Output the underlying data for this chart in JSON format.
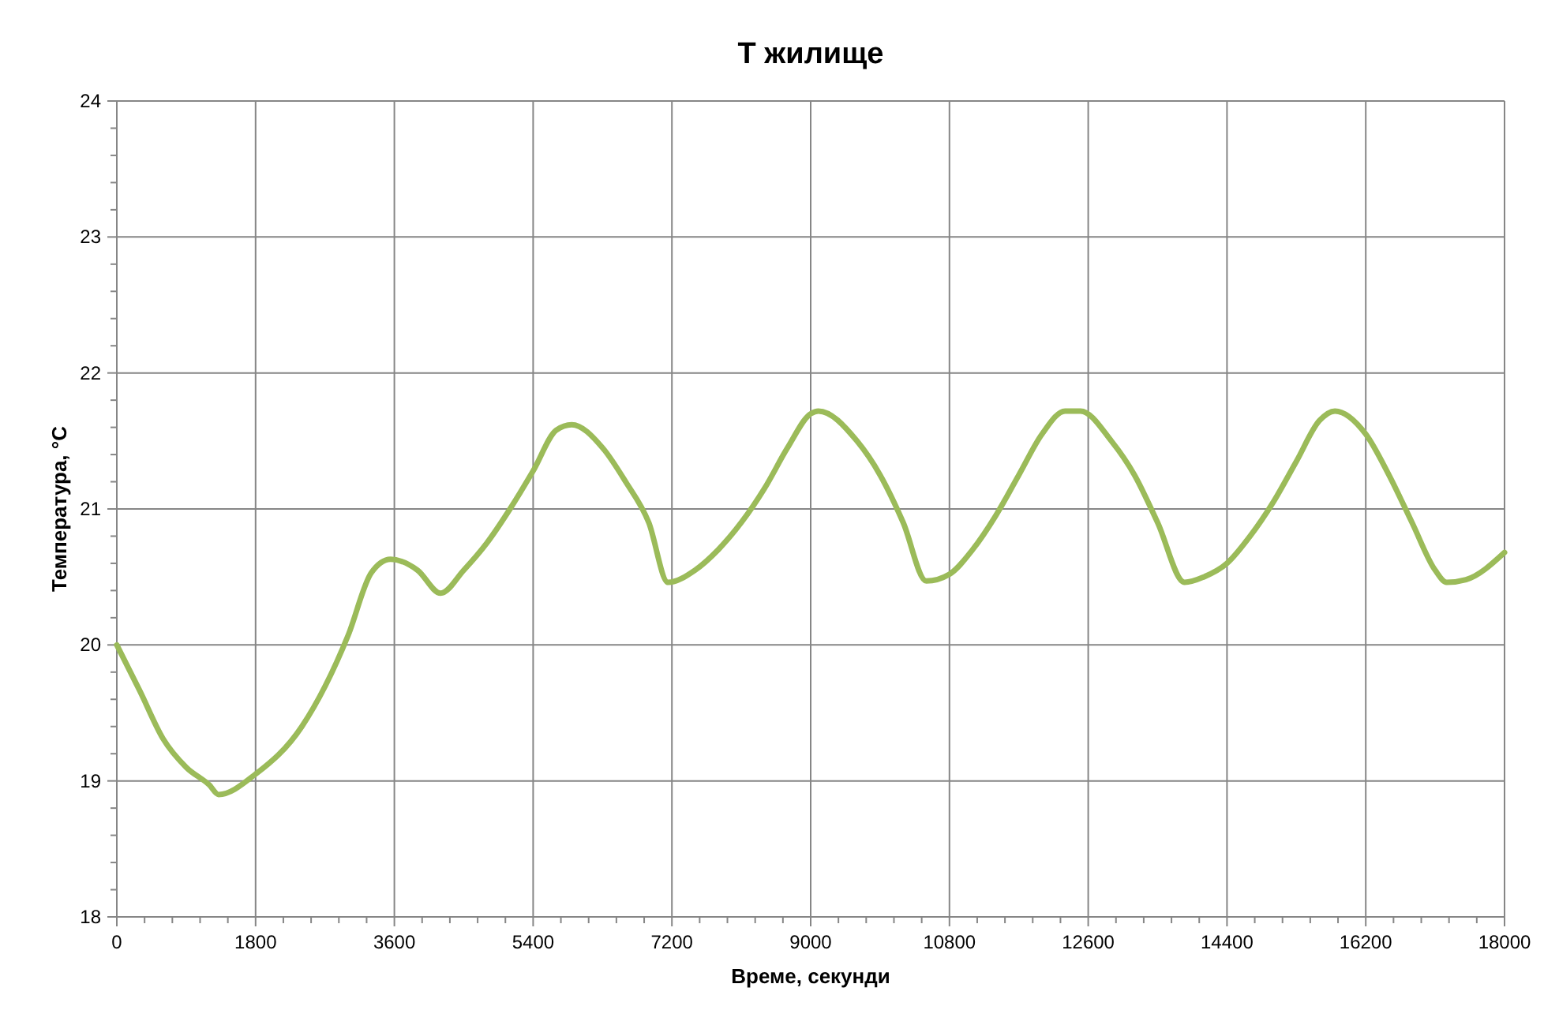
{
  "chart_data": {
    "type": "line",
    "title": "Т жилище",
    "xlabel": "Време, секунди",
    "ylabel": "Температура, °С",
    "xlim": [
      0,
      18000
    ],
    "xticks": [
      0,
      {
        "value": 360,
        "label": null
      },
      {
        "value": 720,
        "label": null
      },
      {
        "value": 1080,
        "label": null
      },
      {
        "value": 1440,
        "label": null
      },
      1800,
      {
        "value": 2160,
        "label": null
      },
      {
        "value": 2520,
        "label": null
      },
      {
        "value": 2880,
        "label": null
      },
      {
        "value": 3240,
        "label": null
      },
      3600,
      {
        "value": 3960,
        "label": null
      },
      {
        "value": 4320,
        "label": null
      },
      {
        "value": 4680,
        "label": null
      },
      {
        "value": 5040,
        "label": null
      },
      5400,
      {
        "value": 5760,
        "label": null
      },
      {
        "value": 6120,
        "label": null
      },
      {
        "value": 6480,
        "label": null
      },
      {
        "value": 6840,
        "label": null
      },
      7200,
      {
        "value": 7560,
        "label": null
      },
      {
        "value": 7920,
        "label": null
      },
      {
        "value": 8280,
        "label": null
      },
      {
        "value": 8640,
        "label": null
      },
      9000,
      {
        "value": 9360,
        "label": null
      },
      {
        "value": 9720,
        "label": null
      },
      {
        "value": 10080,
        "label": null
      },
      {
        "value": 10440,
        "label": null
      },
      10800,
      {
        "value": 11160,
        "label": null
      },
      {
        "value": 11520,
        "label": null
      },
      {
        "value": 11880,
        "label": null
      },
      {
        "value": 12240,
        "label": null
      },
      12600,
      {
        "value": 12960,
        "label": null
      },
      {
        "value": 13320,
        "label": null
      },
      {
        "value": 13680,
        "label": null
      },
      {
        "value": 14040,
        "label": null
      },
      14400,
      {
        "value": 14760,
        "label": null
      },
      {
        "value": 15120,
        "label": null
      },
      {
        "value": 15480,
        "label": null
      },
      {
        "value": 15840,
        "label": null
      },
      16200,
      {
        "value": 16560,
        "label": null
      },
      {
        "value": 16920,
        "label": null
      },
      {
        "value": 17280,
        "label": null
      },
      {
        "value": 17640,
        "label": null
      },
      18000
    ],
    "ylim": [
      18,
      24
    ],
    "yticks": [
      18,
      {
        "value": 18.2,
        "label": null
      },
      {
        "value": 18.4,
        "label": null
      },
      {
        "value": 18.6,
        "label": null
      },
      {
        "value": 18.8,
        "label": null
      },
      19,
      {
        "value": 19.2,
        "label": null
      },
      {
        "value": 19.4,
        "label": null
      },
      {
        "value": 19.6,
        "label": null
      },
      {
        "value": 19.8,
        "label": null
      },
      20,
      {
        "value": 20.2,
        "label": null
      },
      {
        "value": 20.4,
        "label": null
      },
      {
        "value": 20.6,
        "label": null
      },
      {
        "value": 20.8,
        "label": null
      },
      21,
      {
        "value": 21.2,
        "label": null
      },
      {
        "value": 21.4,
        "label": null
      },
      {
        "value": 21.6,
        "label": null
      },
      {
        "value": 21.8,
        "label": null
      },
      22,
      {
        "value": 22.2,
        "label": null
      },
      {
        "value": 22.4,
        "label": null
      },
      {
        "value": 22.6,
        "label": null
      },
      {
        "value": 22.8,
        "label": null
      },
      23,
      {
        "value": 23.2,
        "label": null
      },
      {
        "value": 23.4,
        "label": null
      },
      {
        "value": 23.6,
        "label": null
      },
      {
        "value": 23.8,
        "label": null
      },
      24
    ],
    "grid": true,
    "marker": "none",
    "line_style": "solid",
    "series": [
      {
        "color": "#9bbb59",
        "x": [
          0,
          300,
          600,
          900,
          1200,
          1320,
          1800,
          2400,
          3000,
          3300,
          3550,
          3900,
          4200,
          4500,
          4800,
          5100,
          5400,
          5700,
          5900,
          6300,
          6600,
          6900,
          7150,
          7500,
          7800,
          8100,
          8400,
          8700,
          9000,
          9100,
          9600,
          9900,
          10200,
          10500,
          10800,
          11100,
          11400,
          11700,
          12000,
          12300,
          12500,
          12900,
          13200,
          13500,
          13850,
          14100,
          14400,
          14700,
          15000,
          15300,
          15600,
          15800,
          16200,
          16500,
          16800,
          17100,
          17250,
          17500,
          18000
        ],
        "values": [
          20.0,
          19.66,
          19.31,
          19.1,
          18.97,
          18.9,
          19.05,
          19.4,
          20.07,
          20.53,
          20.63,
          20.55,
          20.38,
          20.55,
          20.75,
          21.0,
          21.28,
          21.58,
          21.62,
          21.45,
          21.2,
          20.9,
          20.46,
          20.55,
          20.7,
          20.9,
          21.15,
          21.45,
          21.7,
          21.72,
          21.5,
          21.25,
          20.9,
          20.47,
          20.52,
          20.7,
          20.95,
          21.25,
          21.55,
          21.72,
          21.72,
          21.5,
          21.25,
          20.9,
          20.46,
          20.5,
          20.6,
          20.8,
          21.05,
          21.35,
          21.65,
          21.72,
          21.55,
          21.25,
          20.9,
          20.55,
          20.46,
          20.48,
          20.68
        ]
      }
    ]
  }
}
